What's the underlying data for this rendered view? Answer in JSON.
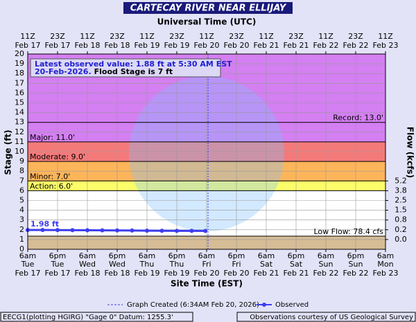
{
  "chart_data": {
    "type": "line",
    "title": "CARTECAY RIVER NEAR ELLIJAY",
    "top_axis_label": "Universal Time (UTC)",
    "xlabel": "Site Time (EST)",
    "ylabel": "Stage (ft)",
    "y2label": "Flow (kcfs)",
    "xlim": [
      0,
      144
    ],
    "xticks": [
      {
        "value": 0,
        "time": "6am",
        "day": "Tue",
        "date": "Feb 17",
        "utc_time": "11Z",
        "utc_date": "Feb 17"
      },
      {
        "value": 12,
        "time": "6pm",
        "day": "Tue",
        "date": "Feb 17",
        "utc_time": "23Z",
        "utc_date": "Feb 17"
      },
      {
        "value": 24,
        "time": "6am",
        "day": "Wed",
        "date": "Feb 18",
        "utc_time": "11Z",
        "utc_date": "Feb 18"
      },
      {
        "value": 36,
        "time": "6pm",
        "day": "Wed",
        "date": "Feb 18",
        "utc_time": "23Z",
        "utc_date": "Feb 18"
      },
      {
        "value": 48,
        "time": "6am",
        "day": "Thu",
        "date": "Feb 19",
        "utc_time": "11Z",
        "utc_date": "Feb 19"
      },
      {
        "value": 60,
        "time": "6pm",
        "day": "Thu",
        "date": "Feb 19",
        "utc_time": "23Z",
        "utc_date": "Feb 19"
      },
      {
        "value": 72,
        "time": "6am",
        "day": "Fri",
        "date": "Feb 20",
        "utc_time": "11Z",
        "utc_date": "Feb 20"
      },
      {
        "value": 84,
        "time": "6pm",
        "day": "Fri",
        "date": "Feb 20",
        "utc_time": "23Z",
        "utc_date": "Feb 20"
      },
      {
        "value": 96,
        "time": "6am",
        "day": "Sat",
        "date": "Feb 21",
        "utc_time": "11Z",
        "utc_date": "Feb 21"
      },
      {
        "value": 108,
        "time": "6pm",
        "day": "Sat",
        "date": "Feb 21",
        "utc_time": "23Z",
        "utc_date": "Feb 21"
      },
      {
        "value": 120,
        "time": "6am",
        "day": "Sun",
        "date": "Feb 22",
        "utc_time": "11Z",
        "utc_date": "Feb 22"
      },
      {
        "value": 132,
        "time": "6pm",
        "day": "Sun",
        "date": "Feb 22",
        "utc_time": "23Z",
        "utc_date": "Feb 22"
      },
      {
        "value": 144,
        "time": "6am",
        "day": "Mon",
        "date": "Feb 23",
        "utc_time": "11Z",
        "utc_date": "Feb 23"
      }
    ],
    "ylim": [
      0,
      20
    ],
    "yticks": [
      0,
      1,
      2,
      3,
      4,
      5,
      6,
      7,
      8,
      9,
      10,
      11,
      12,
      13,
      14,
      15,
      16,
      17,
      18,
      19,
      20
    ],
    "y2ticks": [
      {
        "value": 7,
        "label": "5.2"
      },
      {
        "value": 6,
        "label": "3.8"
      },
      {
        "value": 5,
        "label": "2.5"
      },
      {
        "value": 4,
        "label": "1.5"
      },
      {
        "value": 3,
        "label": "0.8"
      },
      {
        "value": 2,
        "label": "0.2"
      },
      {
        "value": 1,
        "label": "0.0"
      }
    ],
    "grid": true,
    "record": {
      "label": "Record: 13.0'",
      "value": 13
    },
    "flood_categories": [
      {
        "label": "Major: 11.0'",
        "value": 11,
        "color": "#d47ff2"
      },
      {
        "label": "Moderate: 9.0'",
        "value": 9,
        "color": "#f47a7a"
      },
      {
        "label": "Minor: 7.0'",
        "value": 7,
        "color": "#fdb55a"
      },
      {
        "label": "Action: 6.0'",
        "value": 6,
        "color": "#fdfd6a"
      }
    ],
    "low_flow": {
      "label": "Low Flow: 78.4 cfs",
      "value": 1.35,
      "color": "#d6bd96"
    },
    "annotation_line1": "Latest observed value: 1.88 ft at 5:30 AM EST",
    "annotation_line2a": "20-Feb-2026.",
    "annotation_line2b": "Flood Stage is 7 ft",
    "peak_label": "1.98 ft",
    "created": {
      "x": 72.57,
      "label": "Graph Created (6:34AM Feb 20, 2026)"
    },
    "series": [
      {
        "name": "Observed",
        "color": "#3d3df0",
        "x": [
          0,
          6,
          12,
          18,
          24,
          30,
          36,
          42,
          48,
          54,
          60,
          66,
          71.5
        ],
        "values": [
          1.98,
          1.98,
          1.97,
          1.96,
          1.95,
          1.94,
          1.93,
          1.92,
          1.91,
          1.9,
          1.89,
          1.89,
          1.88
        ]
      }
    ],
    "footer_left": "EECG1(plotting HGIRG) \"Gage 0\" Datum: 1255.3'",
    "footer_right": "Observations courtesy of US Geological Survey"
  }
}
